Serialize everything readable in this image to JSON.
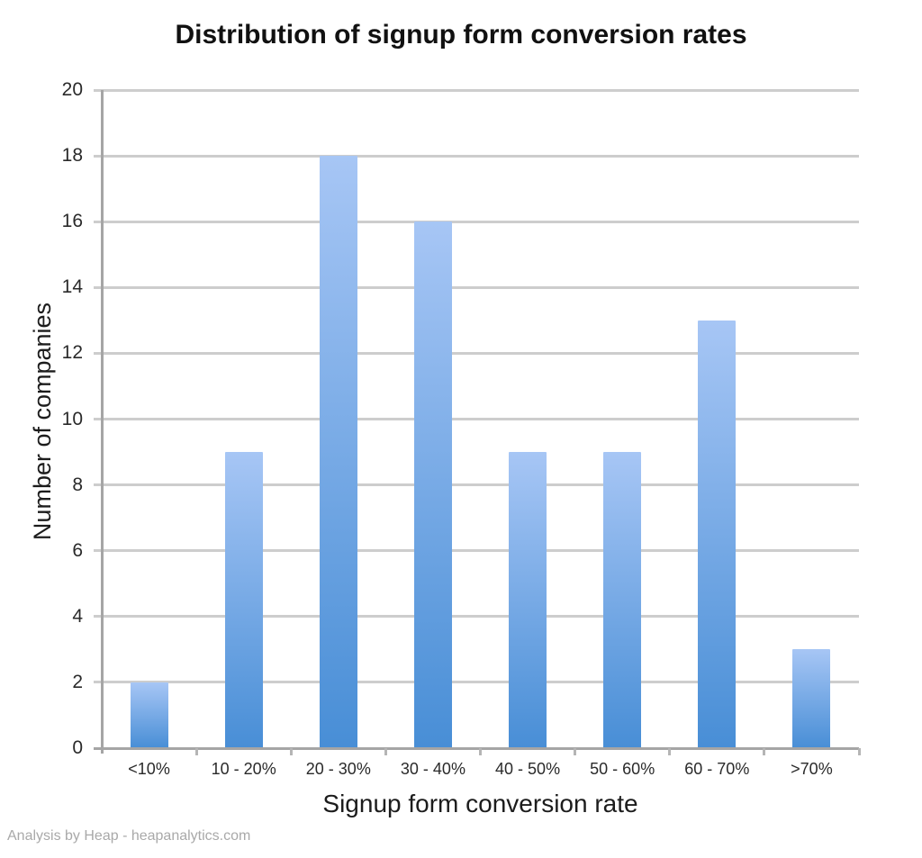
{
  "page": {
    "background": "#ffffff"
  },
  "chart_data": {
    "type": "bar",
    "title": "Distribution of signup form conversion rates",
    "xlabel": "Signup form conversion rate",
    "ylabel": "Number of companies",
    "categories": [
      "<10%",
      "10 - 20%",
      "20 - 30%",
      "30 - 40%",
      "40 - 50%",
      "50 - 60%",
      "60 - 70%",
      ">70%"
    ],
    "values": [
      2,
      9,
      18,
      16,
      9,
      9,
      13,
      3
    ],
    "ylim": [
      0,
      20
    ],
    "ytick_step": 2,
    "grid": true,
    "legend": false,
    "colors": {
      "bar_gradient_top": "#a7c6f5",
      "bar_gradient_bottom": "#488ed6",
      "gridline": "#cdcdcd",
      "axis": "#a5a5a5",
      "tick": "#b5b5b5",
      "title": "#111111",
      "axis_label": "#1c1c1c",
      "tick_label": "#2a2a2a",
      "footer": "#a9a9a9"
    }
  },
  "footer": {
    "credit": "Analysis by Heap - heapanalytics.com"
  }
}
